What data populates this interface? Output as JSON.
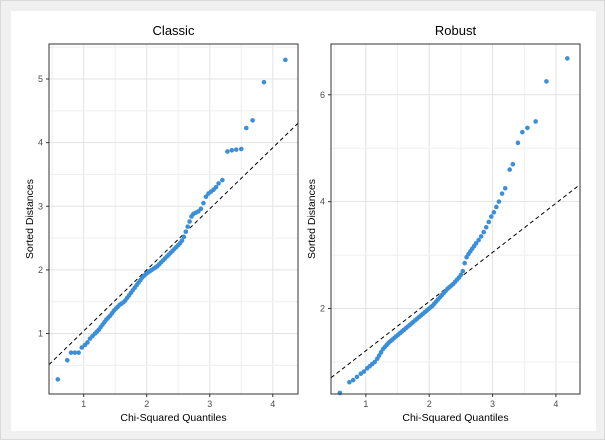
{
  "chart_data": [
    {
      "type": "scatter",
      "title": "Classic",
      "xlabel": "Chi-Squared Quantiles",
      "ylabel": "Sorted Distances",
      "xlim": [
        0.45,
        4.4
      ],
      "ylim": [
        0.05,
        5.55
      ],
      "xticks": [
        1,
        2,
        3,
        4
      ],
      "yticks": [
        1,
        2,
        3,
        4,
        5
      ],
      "grid": true,
      "point_color": "#3b8fd9",
      "reference_line": {
        "style": "dashed",
        "color": "#000000",
        "intercept": 0.08,
        "slope": 0.96
      },
      "points": [
        [
          0.59,
          0.28
        ],
        [
          0.74,
          0.58
        ],
        [
          0.8,
          0.7
        ],
        [
          0.86,
          0.7
        ],
        [
          0.92,
          0.7
        ],
        [
          0.97,
          0.78
        ],
        [
          1.02,
          0.82
        ],
        [
          1.06,
          0.86
        ],
        [
          1.1,
          0.92
        ],
        [
          1.14,
          0.96
        ],
        [
          1.18,
          1.0
        ],
        [
          1.21,
          1.03
        ],
        [
          1.24,
          1.06
        ],
        [
          1.27,
          1.1
        ],
        [
          1.3,
          1.14
        ],
        [
          1.33,
          1.18
        ],
        [
          1.36,
          1.22
        ],
        [
          1.39,
          1.25
        ],
        [
          1.42,
          1.28
        ],
        [
          1.45,
          1.32
        ],
        [
          1.48,
          1.36
        ],
        [
          1.51,
          1.39
        ],
        [
          1.54,
          1.42
        ],
        [
          1.57,
          1.45
        ],
        [
          1.6,
          1.47
        ],
        [
          1.63,
          1.49
        ],
        [
          1.66,
          1.52
        ],
        [
          1.69,
          1.56
        ],
        [
          1.72,
          1.6
        ],
        [
          1.75,
          1.64
        ],
        [
          1.78,
          1.68
        ],
        [
          1.81,
          1.72
        ],
        [
          1.84,
          1.76
        ],
        [
          1.87,
          1.8
        ],
        [
          1.9,
          1.84
        ],
        [
          1.93,
          1.88
        ],
        [
          1.96,
          1.91
        ],
        [
          1.99,
          1.94
        ],
        [
          2.02,
          1.96
        ],
        [
          2.05,
          1.98
        ],
        [
          2.08,
          2.0
        ],
        [
          2.11,
          2.02
        ],
        [
          2.14,
          2.04
        ],
        [
          2.17,
          2.06
        ],
        [
          2.2,
          2.09
        ],
        [
          2.23,
          2.12
        ],
        [
          2.26,
          2.15
        ],
        [
          2.29,
          2.18
        ],
        [
          2.32,
          2.21
        ],
        [
          2.35,
          2.24
        ],
        [
          2.38,
          2.27
        ],
        [
          2.41,
          2.3
        ],
        [
          2.44,
          2.33
        ],
        [
          2.47,
          2.36
        ],
        [
          2.5,
          2.39
        ],
        [
          2.53,
          2.42
        ],
        [
          2.56,
          2.46
        ],
        [
          2.59,
          2.52
        ],
        [
          2.62,
          2.6
        ],
        [
          2.65,
          2.68
        ],
        [
          2.68,
          2.76
        ],
        [
          2.71,
          2.84
        ],
        [
          2.74,
          2.88
        ],
        [
          2.78,
          2.9
        ],
        [
          2.82,
          2.92
        ],
        [
          2.86,
          2.96
        ],
        [
          2.9,
          3.05
        ],
        [
          2.94,
          3.15
        ],
        [
          2.98,
          3.2
        ],
        [
          3.02,
          3.23
        ],
        [
          3.06,
          3.26
        ],
        [
          3.1,
          3.3
        ],
        [
          3.14,
          3.36
        ],
        [
          3.2,
          3.41
        ],
        [
          3.28,
          3.86
        ],
        [
          3.35,
          3.88
        ],
        [
          3.42,
          3.89
        ],
        [
          3.5,
          3.9
        ],
        [
          3.58,
          4.23
        ],
        [
          3.68,
          4.35
        ],
        [
          3.86,
          4.95
        ],
        [
          4.2,
          5.3
        ]
      ]
    },
    {
      "type": "scatter",
      "title": "Robust",
      "xlabel": "Chi-Squared Quantiles",
      "ylabel": "Sorted Distances",
      "xlim": [
        0.45,
        4.38
      ],
      "ylim": [
        0.4,
        6.95
      ],
      "xticks": [
        1,
        2,
        3,
        4
      ],
      "yticks": [
        2,
        4,
        6
      ],
      "grid": true,
      "point_color": "#3b8fd9",
      "reference_line": {
        "style": "dashed",
        "color": "#000000",
        "intercept": 0.29,
        "slope": 0.92
      },
      "points": [
        [
          0.59,
          0.42
        ],
        [
          0.74,
          0.62
        ],
        [
          0.8,
          0.66
        ],
        [
          0.86,
          0.72
        ],
        [
          0.92,
          0.78
        ],
        [
          0.97,
          0.82
        ],
        [
          1.02,
          0.88
        ],
        [
          1.06,
          0.92
        ],
        [
          1.1,
          0.96
        ],
        [
          1.14,
          1.0
        ],
        [
          1.18,
          1.06
        ],
        [
          1.21,
          1.12
        ],
        [
          1.24,
          1.18
        ],
        [
          1.27,
          1.24
        ],
        [
          1.3,
          1.28
        ],
        [
          1.33,
          1.32
        ],
        [
          1.36,
          1.36
        ],
        [
          1.39,
          1.39
        ],
        [
          1.42,
          1.42
        ],
        [
          1.45,
          1.45
        ],
        [
          1.48,
          1.48
        ],
        [
          1.51,
          1.51
        ],
        [
          1.54,
          1.54
        ],
        [
          1.57,
          1.57
        ],
        [
          1.6,
          1.6
        ],
        [
          1.63,
          1.63
        ],
        [
          1.66,
          1.66
        ],
        [
          1.69,
          1.69
        ],
        [
          1.72,
          1.72
        ],
        [
          1.75,
          1.75
        ],
        [
          1.78,
          1.78
        ],
        [
          1.81,
          1.81
        ],
        [
          1.84,
          1.84
        ],
        [
          1.87,
          1.87
        ],
        [
          1.9,
          1.9
        ],
        [
          1.93,
          1.93
        ],
        [
          1.96,
          1.96
        ],
        [
          1.99,
          1.99
        ],
        [
          2.02,
          2.02
        ],
        [
          2.05,
          2.05
        ],
        [
          2.08,
          2.09
        ],
        [
          2.11,
          2.13
        ],
        [
          2.14,
          2.17
        ],
        [
          2.17,
          2.21
        ],
        [
          2.2,
          2.25
        ],
        [
          2.23,
          2.29
        ],
        [
          2.26,
          2.33
        ],
        [
          2.29,
          2.37
        ],
        [
          2.32,
          2.4
        ],
        [
          2.35,
          2.43
        ],
        [
          2.38,
          2.46
        ],
        [
          2.41,
          2.5
        ],
        [
          2.44,
          2.54
        ],
        [
          2.47,
          2.58
        ],
        [
          2.5,
          2.63
        ],
        [
          2.53,
          2.7
        ],
        [
          2.56,
          2.85
        ],
        [
          2.59,
          2.96
        ],
        [
          2.62,
          3.02
        ],
        [
          2.65,
          3.07
        ],
        [
          2.68,
          3.12
        ],
        [
          2.71,
          3.17
        ],
        [
          2.74,
          3.22
        ],
        [
          2.78,
          3.28
        ],
        [
          2.82,
          3.35
        ],
        [
          2.86,
          3.43
        ],
        [
          2.9,
          3.52
        ],
        [
          2.94,
          3.62
        ],
        [
          2.98,
          3.72
        ],
        [
          3.02,
          3.8
        ],
        [
          3.06,
          3.9
        ],
        [
          3.1,
          4.0
        ],
        [
          3.15,
          4.15
        ],
        [
          3.2,
          4.25
        ],
        [
          3.27,
          4.6
        ],
        [
          3.32,
          4.7
        ],
        [
          3.4,
          5.1
        ],
        [
          3.47,
          5.3
        ],
        [
          3.55,
          5.38
        ],
        [
          3.68,
          5.5
        ],
        [
          3.85,
          6.25
        ],
        [
          4.18,
          6.68
        ]
      ]
    }
  ]
}
